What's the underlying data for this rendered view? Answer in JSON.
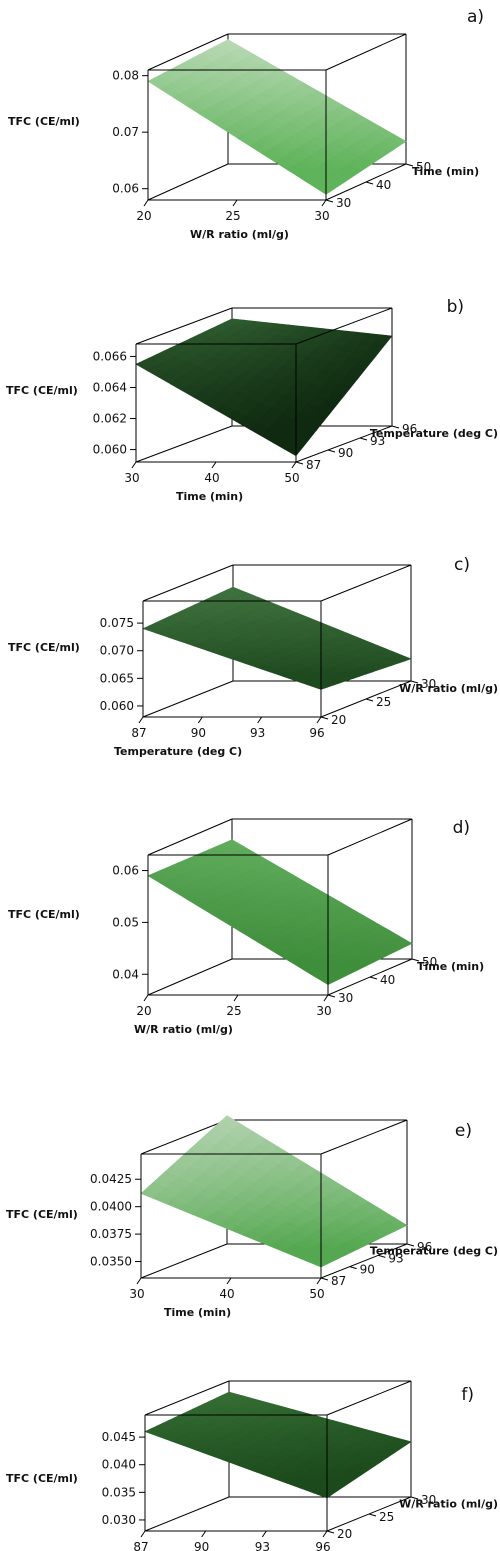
{
  "chart_data": [
    {
      "type": "surface",
      "panel_label": "a)",
      "zlabel": "TFC (CE/ml)",
      "xlabel": "W/R ratio (ml/g)",
      "ylabel": "Time (min)",
      "z_ticks": [
        "0.06",
        "0.07",
        "0.08"
      ],
      "x_ticks": [
        "20",
        "25",
        "30"
      ],
      "y_ticks": [
        "30",
        "40",
        "50"
      ],
      "zlim": [
        0.058,
        0.081
      ],
      "surface_corners": {
        "x_min_y_min": 0.079,
        "x_min_y_max": 0.08,
        "x_max_y_min": 0.059,
        "x_max_y_max": 0.062
      },
      "colors": {
        "light": "#d7e6d3",
        "dark": "#5fb35a"
      }
    },
    {
      "type": "surface",
      "panel_label": "b)",
      "zlabel": "TFC (CE/ml)",
      "xlabel": "Time (min)",
      "ylabel": "Temperature (deg C)",
      "z_ticks": [
        "0.060",
        "0.062",
        "0.064",
        "0.066"
      ],
      "x_ticks": [
        "30",
        "40",
        "50"
      ],
      "y_ticks": [
        "87",
        "90",
        "93",
        "96"
      ],
      "zlim": [
        0.0592,
        0.0668
      ],
      "surface_corners": {
        "x_min_y_min": 0.0655,
        "x_min_y_max": 0.0661,
        "x_max_y_min": 0.0596,
        "x_max_y_max": 0.065
      },
      "colors": {
        "light": "#3a6e3a",
        "dark": "#0f2a10"
      }
    },
    {
      "type": "surface",
      "panel_label": "c)",
      "zlabel": "TFC (CE/ml)",
      "xlabel": "Temperature (deg C)",
      "ylabel": "W/R ratio (ml/g)",
      "z_ticks": [
        "0.060",
        "0.065",
        "0.070",
        "0.075"
      ],
      "x_ticks": [
        "87",
        "90",
        "93",
        "96"
      ],
      "y_ticks": [
        "20",
        "25",
        "30"
      ],
      "zlim": [
        0.058,
        0.079
      ],
      "surface_corners": {
        "x_min_y_min": 0.074,
        "x_min_y_max": 0.075,
        "x_max_y_min": 0.063,
        "x_max_y_max": 0.062
      },
      "colors": {
        "light": "#4a8048",
        "dark": "#1f4a20"
      }
    },
    {
      "type": "surface",
      "panel_label": "d)",
      "zlabel": "TFC (CE/ml)",
      "xlabel": "W/R ratio (ml/g)",
      "ylabel": "Time (min)",
      "z_ticks": [
        "0.04",
        "0.05",
        "0.06"
      ],
      "x_ticks": [
        "20",
        "25",
        "30"
      ],
      "y_ticks": [
        "30",
        "40",
        "50"
      ],
      "zlim": [
        0.036,
        0.063
      ],
      "surface_corners": {
        "x_min_y_min": 0.059,
        "x_min_y_max": 0.059,
        "x_max_y_min": 0.038,
        "x_max_y_max": 0.039
      },
      "colors": {
        "light": "#6cb768",
        "dark": "#3f8e3c"
      }
    },
    {
      "type": "surface",
      "panel_label": "e)",
      "zlabel": "TFC (CE/ml)",
      "xlabel": "Time (min)",
      "ylabel": "Temperature (deg C)",
      "z_ticks": [
        "0.0350",
        "0.0375",
        "0.0400",
        "0.0425"
      ],
      "x_ticks": [
        "30",
        "40",
        "50"
      ],
      "y_ticks": [
        "87",
        "90",
        "93",
        "96"
      ],
      "zlim": [
        0.0335,
        0.0448
      ],
      "surface_corners": {
        "x_min_y_min": 0.0412,
        "x_min_y_max": 0.0452,
        "x_max_y_min": 0.0345,
        "x_max_y_max": 0.0352
      },
      "colors": {
        "light": "#cfe0cc",
        "dark": "#55a851"
      }
    },
    {
      "type": "surface",
      "panel_label": "f)",
      "zlabel": "TFC (CE/ml)",
      "xlabel": "Temperature (deg C)",
      "ylabel": "W/R ratio (ml/g)",
      "z_ticks": [
        "0.030",
        "0.035",
        "0.040",
        "0.045"
      ],
      "x_ticks": [
        "87",
        "90",
        "93",
        "96"
      ],
      "y_ticks": [
        "20",
        "25",
        "30"
      ],
      "zlim": [
        0.028,
        0.049
      ],
      "surface_corners": {
        "x_min_y_min": 0.046,
        "x_min_y_max": 0.047,
        "x_max_y_min": 0.034,
        "x_max_y_max": 0.038
      },
      "colors": {
        "light": "#3e7a3c",
        "dark": "#1c4a1c"
      }
    }
  ]
}
